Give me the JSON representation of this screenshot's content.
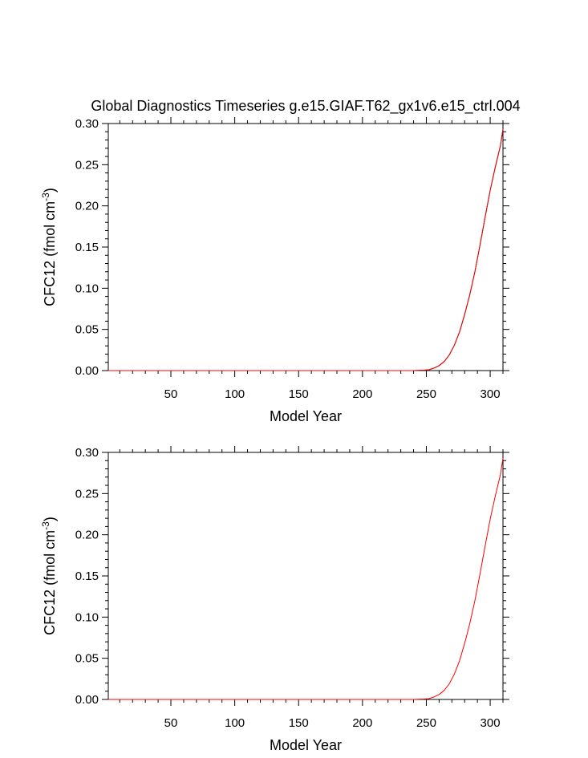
{
  "chart_data": [
    {
      "type": "line",
      "title": "Global Diagnostics Timeseries g.e15.GIAF.T62_gx1v6.e15_ctrl.004",
      "xlabel": "Model Year",
      "ylabel_main": "CFC12 (fmol cm",
      "ylabel_sup": "-3",
      "ylabel_close": ")",
      "xlim": [
        1,
        310
      ],
      "ylim": [
        0,
        0.3
      ],
      "xticks": [
        50,
        100,
        150,
        200,
        250,
        300
      ],
      "xtick_labels": [
        "50",
        "100",
        "150",
        "200",
        "250",
        "300"
      ],
      "yticks": [
        0,
        0.05,
        0.1,
        0.15,
        0.2,
        0.25,
        0.3
      ],
      "ytick_labels": [
        "0.00",
        "0.05",
        "0.10",
        "0.15",
        "0.20",
        "0.25",
        "0.30"
      ],
      "series": [
        {
          "color": "#000000",
          "x": [
            1,
            50,
            100,
            150,
            200,
            240,
            248,
            252,
            256,
            260,
            264,
            268,
            272,
            276,
            280,
            284,
            288,
            292,
            296,
            300,
            304,
            308,
            310
          ],
          "y": [
            0,
            0,
            0,
            0,
            0,
            0,
            0.0005,
            0.001,
            0.003,
            0.006,
            0.011,
            0.019,
            0.031,
            0.047,
            0.068,
            0.092,
            0.12,
            0.152,
            0.186,
            0.219,
            0.247,
            0.273,
            0.293
          ]
        },
        {
          "color": "#ff0000",
          "x": [
            1,
            50,
            100,
            150,
            200,
            240,
            248,
            252,
            256,
            260,
            264,
            268,
            272,
            276,
            280,
            284,
            288,
            292,
            296,
            300,
            304,
            308,
            310
          ],
          "y": [
            0,
            0,
            0,
            0,
            0,
            0,
            0.0005,
            0.001,
            0.003,
            0.006,
            0.011,
            0.019,
            0.031,
            0.047,
            0.068,
            0.092,
            0.12,
            0.152,
            0.186,
            0.219,
            0.247,
            0.273,
            0.293
          ]
        }
      ]
    },
    {
      "type": "line",
      "title": "",
      "xlabel": "Model Year",
      "ylabel_main": "CFC12 (fmol cm",
      "ylabel_sup": "-3",
      "ylabel_close": ")",
      "xlim": [
        1,
        310
      ],
      "ylim": [
        0,
        0.3
      ],
      "xticks": [
        50,
        100,
        150,
        200,
        250,
        300
      ],
      "xtick_labels": [
        "50",
        "100",
        "150",
        "200",
        "250",
        "300"
      ],
      "yticks": [
        0,
        0.05,
        0.1,
        0.15,
        0.2,
        0.25,
        0.3
      ],
      "ytick_labels": [
        "0.00",
        "0.05",
        "0.10",
        "0.15",
        "0.20",
        "0.25",
        "0.30"
      ],
      "series": [
        {
          "color": "#ff0000",
          "x": [
            1,
            50,
            100,
            150,
            200,
            240,
            248,
            252,
            256,
            260,
            264,
            268,
            272,
            276,
            280,
            284,
            288,
            292,
            296,
            300,
            304,
            308,
            310
          ],
          "y": [
            0,
            0,
            0,
            0,
            0,
            0,
            0.0005,
            0.001,
            0.003,
            0.006,
            0.011,
            0.019,
            0.031,
            0.047,
            0.068,
            0.092,
            0.12,
            0.152,
            0.186,
            0.219,
            0.247,
            0.273,
            0.293
          ]
        }
      ]
    }
  ]
}
